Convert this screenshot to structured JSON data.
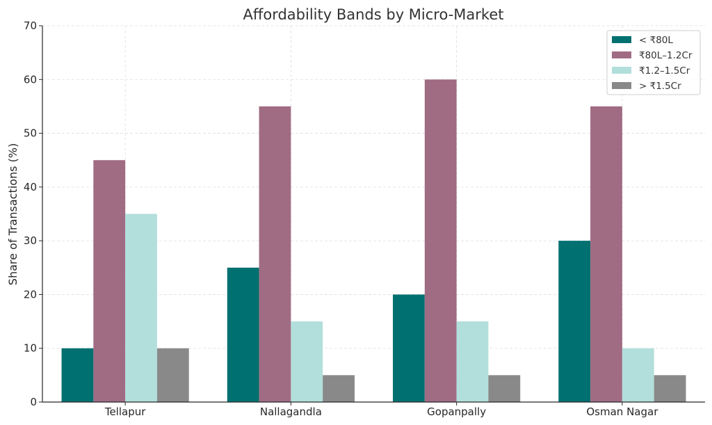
{
  "chart_data": {
    "type": "bar",
    "title": "Affordability Bands by Micro-Market",
    "xlabel": "",
    "ylabel": "Share of Transactions (%)",
    "categories": [
      "Tellapur",
      "Nallagandla",
      "Gopanpally",
      "Osman Nagar"
    ],
    "series": [
      {
        "name": "< ₹80L",
        "color": "#007070",
        "values": [
          10,
          25,
          20,
          30
        ]
      },
      {
        "name": "₹80L–1.2Cr",
        "color": "#a06c83",
        "values": [
          45,
          55,
          60,
          55
        ]
      },
      {
        "name": "₹1.2–1.5Cr",
        "color": "#b2dfdb",
        "values": [
          35,
          15,
          15,
          10
        ]
      },
      {
        "name": "> ₹1.5Cr",
        "color": "#898989",
        "values": [
          10,
          5,
          5,
          5
        ]
      }
    ],
    "ylim": [
      0,
      70
    ],
    "yticks": [
      0,
      10,
      20,
      30,
      40,
      50,
      60,
      70
    ],
    "grid": true,
    "legend_position": "top-right"
  }
}
